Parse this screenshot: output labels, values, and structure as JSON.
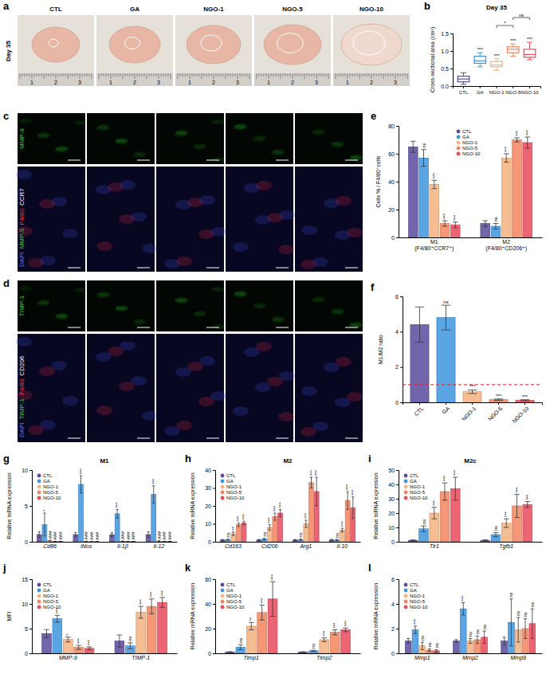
{
  "panel_a": {
    "label": "a",
    "side_label": "Day 35",
    "columns": [
      "CTL",
      "GA",
      "NGO-1",
      "NGO-5",
      "NGO-10"
    ],
    "ruler": [
      "1",
      "2",
      "3"
    ]
  },
  "panel_c": {
    "label": "c",
    "top_label": {
      "text": "MMP-9",
      "color": "#3fd13f"
    },
    "bottom_label": [
      {
        "text": "DAPI",
        "color": "#5b7bff"
      },
      {
        "text": "MMP-9",
        "color": "#3fd13f"
      },
      {
        "text": "F4/80",
        "color": "#ff3b3b"
      },
      {
        "text": "CCR7",
        "color": "#ffffff"
      }
    ]
  },
  "panel_d": {
    "label": "d",
    "top_label": {
      "text": "TIMP-1",
      "color": "#3fd13f"
    },
    "bottom_label": [
      {
        "text": "DAPI",
        "color": "#5b7bff"
      },
      {
        "text": "TIMP-1",
        "color": "#3fd13f"
      },
      {
        "text": "F4/80",
        "color": "#ff3b3b"
      },
      {
        "text": "CD206",
        "color": "#ffffff"
      }
    ]
  },
  "chart_data": [
    {
      "type": "box",
      "label": "b",
      "title": "Day 35",
      "y_label": "Cross-sectional area (cm²)",
      "categories": [
        "CTL",
        "GA",
        "NGO-1",
        "NGO-5",
        "NGO-10"
      ],
      "colors": [
        "#5b4a9e",
        "#3f95de",
        "#f6b27f",
        "#f3845f",
        "#e94a5c"
      ],
      "boxes": [
        {
          "min": 0.05,
          "q1": 0.12,
          "median": 0.2,
          "q3": 0.28,
          "max": 0.38
        },
        {
          "min": 0.55,
          "q1": 0.65,
          "median": 0.72,
          "q3": 0.85,
          "max": 0.95
        },
        {
          "min": 0.45,
          "q1": 0.55,
          "median": 0.6,
          "q3": 0.7,
          "max": 0.78
        },
        {
          "min": 0.85,
          "q1": 0.95,
          "median": 1.05,
          "q3": 1.12,
          "max": 1.2
        },
        {
          "min": 0.75,
          "q1": 0.82,
          "median": 0.9,
          "q3": 1.05,
          "max": 1.25
        }
      ],
      "sig": [
        null,
        "***",
        "***",
        "***",
        "***"
      ],
      "brackets": [
        {
          "from": 2,
          "to": 3,
          "label": "*"
        },
        {
          "from": 3,
          "to": 4,
          "label": "ns"
        }
      ],
      "ylim": [
        0,
        1.5
      ],
      "yticks": [
        {
          "value": 0,
          "label": "0.0"
        },
        {
          "value": 0.5,
          "label": "0.5"
        },
        {
          "value": 1,
          "label": "1.0"
        },
        {
          "value": 1.5,
          "label": "1.5"
        }
      ]
    },
    {
      "type": "bar",
      "label": "e",
      "y_label": "Cells % / F4/80⁺cells",
      "legend": "upper center",
      "categories": [
        "M1\n(F4/80⁺CCR7⁺)",
        "M2\n(F4/80⁺CD206⁺)"
      ],
      "series": [
        {
          "name": "CTL",
          "color": "#5b4a9e",
          "values": [
            65,
            10
          ],
          "errors": [
            4,
            2
          ],
          "sig": [
            null,
            null
          ]
        },
        {
          "name": "GA",
          "color": "#3f95de",
          "values": [
            57,
            8
          ],
          "errors": [
            6,
            2
          ],
          "sig": [
            "ns",
            "ns"
          ]
        },
        {
          "name": "NGO-1",
          "color": "#f6b27f",
          "values": [
            38,
            57
          ],
          "errors": [
            3,
            3
          ],
          "sig": [
            "***",
            "***"
          ]
        },
        {
          "name": "NGO-5",
          "color": "#f3845f",
          "values": [
            10,
            70
          ],
          "errors": [
            2,
            1.5
          ],
          "sig": [
            "***",
            "***"
          ]
        },
        {
          "name": "NGO-10",
          "color": "#e94a5c",
          "values": [
            9,
            68
          ],
          "errors": [
            2,
            4
          ],
          "sig": [
            "***",
            "***"
          ]
        }
      ],
      "ylim": [
        0,
        80
      ],
      "yticks": [
        0,
        20,
        40,
        60,
        80
      ]
    },
    {
      "type": "bar",
      "label": "f",
      "y_label": "M1/M2 ratio",
      "categories": [
        "CTL",
        "GA",
        "NGO-1",
        "NGO-5",
        "NGO-10"
      ],
      "colors": [
        "#5b4a9e",
        "#3f95de",
        "#f6b27f",
        "#f3845f",
        "#e94a5c"
      ],
      "values": [
        4.4,
        4.8,
        0.6,
        0.15,
        0.12
      ],
      "errors": [
        1.0,
        0.7,
        0.1,
        0.04,
        0.03
      ],
      "sig": [
        null,
        "ns",
        "***",
        "***",
        "***"
      ],
      "reference_line": 1,
      "ylim": [
        0,
        6
      ],
      "yticks": [
        0,
        2,
        4,
        6
      ]
    },
    {
      "type": "bar",
      "label": "g",
      "title": "M1",
      "y_label": "Relative mRNA expression",
      "legend": "upper left",
      "categories": [
        "Cd86",
        "iNos",
        "Il-1β",
        "Il-12"
      ],
      "series": [
        {
          "name": "CTL",
          "color": "#5b4a9e",
          "values": [
            1,
            1,
            1,
            1
          ],
          "errors": [
            0.4,
            0.3,
            0.3,
            0.4
          ],
          "sig": [
            null,
            null,
            null,
            null
          ]
        },
        {
          "name": "GA",
          "color": "#3f95de",
          "values": [
            2.4,
            8.0,
            3.9,
            6.6
          ],
          "errors": [
            1.6,
            1.2,
            0.6,
            1.2
          ],
          "sig": [
            "*",
            "***",
            "***",
            "***"
          ]
        },
        {
          "name": "NGO-1",
          "color": "#f6b27f",
          "values": [
            0.15,
            0.05,
            0.08,
            0.1
          ],
          "errors": [
            0.05,
            0.02,
            0.03,
            0.05
          ],
          "sig": [
            "###",
            "###",
            "###",
            "###"
          ]
        },
        {
          "name": "NGO-5",
          "color": "#f3845f",
          "values": [
            0.05,
            0.03,
            0.04,
            0.05
          ],
          "errors": [
            0.02,
            0.01,
            0.02,
            0.02
          ],
          "sig": [
            "###",
            "###",
            "###",
            "###"
          ]
        },
        {
          "name": "NGO-10",
          "color": "#e94a5c",
          "values": [
            0.04,
            0.03,
            0.04,
            0.04
          ],
          "errors": [
            0.02,
            0.01,
            0.02,
            0.02
          ],
          "sig": [
            "###",
            "###",
            "###",
            "###"
          ]
        }
      ],
      "ylim": [
        0,
        10
      ],
      "yticks": [
        0,
        5,
        10
      ]
    },
    {
      "type": "bar",
      "label": "h",
      "title": "M2",
      "y_label": "Relative mRNA expression",
      "legend": "upper left",
      "categories": [
        "Cd163",
        "Cd206",
        "Arg1",
        "Il-10"
      ],
      "series": [
        {
          "name": "CTL",
          "color": "#5b4a9e",
          "values": [
            1,
            1,
            1,
            1
          ],
          "errors": [
            0.3,
            0.3,
            0.3,
            0.3
          ],
          "sig": [
            null,
            null,
            null,
            null
          ]
        },
        {
          "name": "GA",
          "color": "#3f95de",
          "values": [
            1.2,
            1.5,
            1.2,
            1.0
          ],
          "errors": [
            0.3,
            0.4,
            0.3,
            0.3
          ],
          "sig": [
            "ns",
            "ns",
            "ns",
            "ns"
          ]
        },
        {
          "name": "NGO-1",
          "color": "#f6b27f",
          "values": [
            4.5,
            8,
            10,
            6.5
          ],
          "errors": [
            1,
            1.5,
            2,
            1
          ],
          "sig": [
            "**",
            "***",
            "***",
            "***"
          ]
        },
        {
          "name": "NGO-5",
          "color": "#f3845f",
          "values": [
            9.5,
            14,
            33,
            23
          ],
          "errors": [
            1,
            2,
            3,
            5
          ],
          "sig": [
            "***",
            "***",
            "***",
            "***"
          ]
        },
        {
          "name": "NGO-10",
          "color": "#e94a5c",
          "values": [
            10.5,
            16,
            28,
            19
          ],
          "errors": [
            1,
            2,
            8,
            6
          ],
          "sig": [
            "***",
            "***",
            "***",
            "***"
          ]
        }
      ],
      "ylim": [
        0,
        40
      ],
      "yticks": [
        0,
        10,
        20,
        30,
        40
      ]
    },
    {
      "type": "bar",
      "label": "i",
      "title": "M2c",
      "y_label": "Relative mRNA expression",
      "legend": "upper left",
      "categories": [
        "Tlr1",
        "Tgfb1"
      ],
      "series": [
        {
          "name": "CTL",
          "color": "#5b4a9e",
          "values": [
            1,
            1
          ],
          "errors": [
            0.3,
            0.3
          ],
          "sig": [
            null,
            null
          ]
        },
        {
          "name": "GA",
          "color": "#3f95de",
          "values": [
            9,
            5
          ],
          "errors": [
            2,
            1.5
          ],
          "sig": [
            "ns",
            "ns"
          ]
        },
        {
          "name": "NGO-1",
          "color": "#f6b27f",
          "values": [
            20,
            13
          ],
          "errors": [
            4,
            3
          ],
          "sig": [
            "***",
            "***"
          ]
        },
        {
          "name": "NGO-5",
          "color": "#f3845f",
          "values": [
            35,
            25
          ],
          "errors": [
            6,
            8
          ],
          "sig": [
            "***",
            "***"
          ]
        },
        {
          "name": "NGO-10",
          "color": "#e94a5c",
          "values": [
            37,
            26
          ],
          "errors": [
            8,
            2
          ],
          "sig": [
            "***",
            "***"
          ]
        }
      ],
      "ylim": [
        0,
        50
      ],
      "yticks": [
        0,
        10,
        20,
        30,
        40,
        50
      ]
    },
    {
      "type": "bar",
      "label": "j",
      "y_label": "MFI",
      "legend": "upper left",
      "categories": [
        "MMP-9",
        "TIMP-1"
      ],
      "series": [
        {
          "name": "CTL",
          "color": "#5b4a9e",
          "values": [
            4,
            2.5
          ],
          "errors": [
            0.8,
            1.2
          ],
          "sig": [
            null,
            null
          ]
        },
        {
          "name": "GA",
          "color": "#3f95de",
          "values": [
            7,
            1.5
          ],
          "errors": [
            0.7,
            0.6
          ],
          "sig": [
            "***",
            "ns"
          ]
        },
        {
          "name": "NGO-1",
          "color": "#f6b27f",
          "values": [
            2.8,
            8.3
          ],
          "errors": [
            0.5,
            1.2
          ],
          "sig": [
            "*",
            "***"
          ]
        },
        {
          "name": "NGO-5",
          "color": "#f3845f",
          "values": [
            1.2,
            9.5
          ],
          "errors": [
            0.4,
            1.5
          ],
          "sig": [
            "***",
            "***"
          ]
        },
        {
          "name": "NGO-10",
          "color": "#e94a5c",
          "values": [
            1.0,
            10.3
          ],
          "errors": [
            0.3,
            1.0
          ],
          "sig": [
            "***",
            "***"
          ]
        }
      ],
      "ylim": [
        0,
        15
      ],
      "yticks": [
        0,
        5,
        10,
        15
      ]
    },
    {
      "type": "bar",
      "label": "k",
      "y_label": "Relative mRNA expression",
      "legend": "upper left",
      "categories": [
        "Timp1",
        "Timp2"
      ],
      "series": [
        {
          "name": "CTL",
          "color": "#5b4a9e",
          "values": [
            1,
            1
          ],
          "errors": [
            0.3,
            0.3
          ],
          "sig": [
            null,
            null
          ]
        },
        {
          "name": "GA",
          "color": "#3f95de",
          "values": [
            5,
            2
          ],
          "errors": [
            2,
            0.5
          ],
          "sig": [
            "ns",
            "ns"
          ]
        },
        {
          "name": "NGO-1",
          "color": "#f6b27f",
          "values": [
            22,
            11
          ],
          "errors": [
            3,
            1.5
          ],
          "sig": [
            "**",
            "***"
          ]
        },
        {
          "name": "NGO-5",
          "color": "#f3845f",
          "values": [
            33,
            17
          ],
          "errors": [
            6,
            2
          ],
          "sig": [
            "***",
            "***"
          ]
        },
        {
          "name": "NGO-10",
          "color": "#e94a5c",
          "values": [
            44,
            19
          ],
          "errors": [
            14,
            1.5
          ],
          "sig": [
            "***",
            "***"
          ]
        }
      ],
      "ylim": [
        0,
        60
      ],
      "yticks": [
        0,
        20,
        40,
        60
      ]
    },
    {
      "type": "bar",
      "label": "l",
      "y_label": "Relative mRNA expression",
      "legend": "upper left",
      "categories": [
        "Mmp1",
        "Mmp2",
        "Mmp9"
      ],
      "series": [
        {
          "name": "CTL",
          "color": "#5b4a9e",
          "values": [
            1,
            1,
            1
          ],
          "errors": [
            0.2,
            0.1,
            0.3
          ],
          "sig": [
            null,
            null,
            null
          ]
        },
        {
          "name": "GA",
          "color": "#3f95de",
          "values": [
            1.9,
            3.6,
            2.5
          ],
          "errors": [
            0.3,
            0.5,
            1.9
          ],
          "sig": [
            "***",
            "***",
            "ns"
          ]
        },
        {
          "name": "NGO-1",
          "color": "#f6b27f",
          "values": [
            0.6,
            1.0,
            1.9
          ],
          "errors": [
            0.3,
            0.2,
            1.0
          ],
          "sig": [
            "ns",
            "ns",
            "ns"
          ]
        },
        {
          "name": "NGO-5",
          "color": "#f3845f",
          "values": [
            0.25,
            1.1,
            2.0
          ],
          "errors": [
            0.1,
            0.3,
            0.8
          ],
          "sig": [
            "ns",
            "ns",
            "ns"
          ]
        },
        {
          "name": "NGO-10",
          "color": "#e94a5c",
          "values": [
            0.2,
            1.3,
            2.4
          ],
          "errors": [
            0.1,
            0.5,
            1.2
          ],
          "sig": [
            "ns",
            "ns",
            "ns"
          ]
        }
      ],
      "ylim": [
        0,
        6
      ],
      "yticks": [
        0,
        2,
        4,
        6
      ]
    }
  ]
}
